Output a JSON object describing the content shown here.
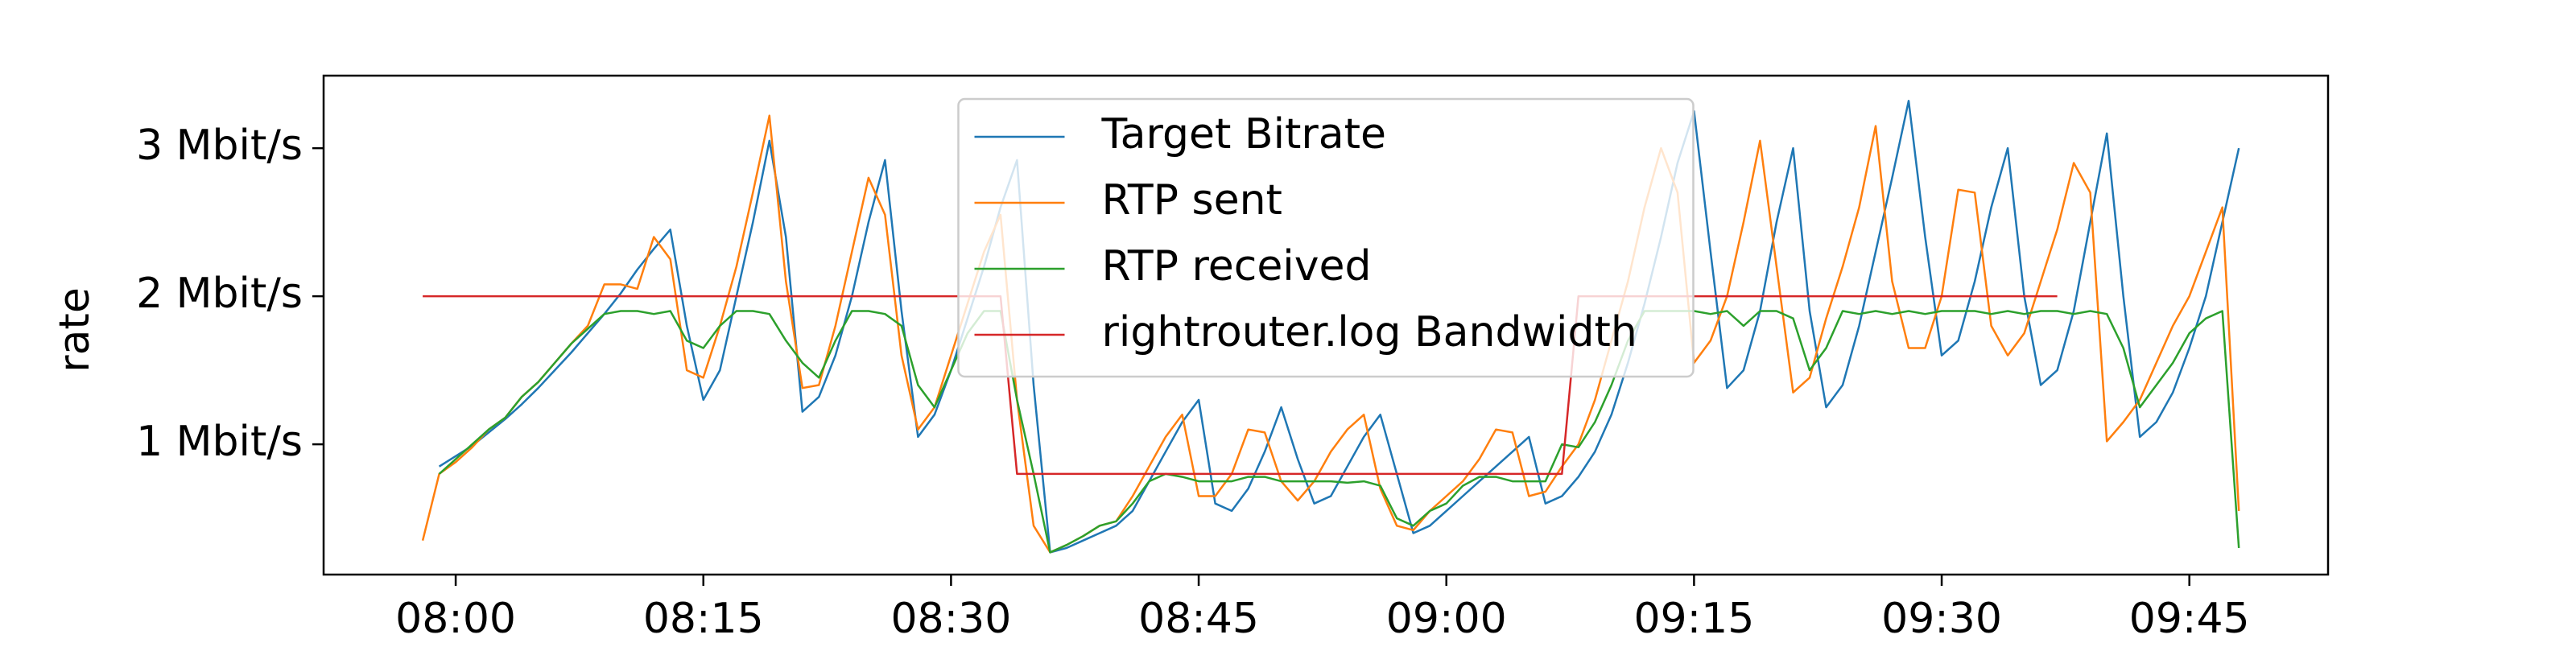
{
  "chart_data": {
    "type": "line",
    "y_label": "rate",
    "legend": "upper center",
    "xlim": [
      472,
      593.4
    ],
    "xticks": [
      {
        "value": 480,
        "label": "08:00"
      },
      {
        "value": 495,
        "label": "08:15"
      },
      {
        "value": 510,
        "label": "08:30"
      },
      {
        "value": 525,
        "label": "08:45"
      },
      {
        "value": 540,
        "label": "09:00"
      },
      {
        "value": 555,
        "label": "09:15"
      },
      {
        "value": 570,
        "label": "09:30"
      },
      {
        "value": 585,
        "label": "09:45"
      }
    ],
    "ylim": [
      0.12,
      3.49
    ],
    "yticks": [
      {
        "value": 1,
        "label": "1 Mbit/s"
      },
      {
        "value": 2,
        "label": "2 Mbit/s"
      },
      {
        "value": 3,
        "label": "3 Mbit/s"
      }
    ],
    "x": [
      478,
      479,
      480,
      481,
      482,
      483,
      484,
      485,
      486,
      487,
      488,
      489,
      490,
      491,
      492,
      493,
      494,
      495,
      496,
      497,
      498,
      499,
      500,
      501,
      502,
      503,
      504,
      505,
      506,
      507,
      508,
      509,
      510,
      511,
      512,
      513,
      514,
      515,
      516,
      517,
      518,
      519,
      520,
      521,
      522,
      523,
      524,
      525,
      526,
      527,
      528,
      529,
      530,
      531,
      532,
      533,
      534,
      535,
      536,
      537,
      538,
      539,
      540,
      541,
      542,
      543,
      544,
      545,
      546,
      547,
      548,
      549,
      550,
      551,
      552,
      553,
      554,
      555,
      556,
      557,
      558,
      559,
      560,
      561,
      562,
      563,
      564,
      565,
      566,
      567,
      568,
      569,
      570,
      571,
      572,
      573,
      574,
      575,
      576,
      577,
      578,
      579,
      580,
      581,
      582,
      583,
      584,
      585,
      586,
      587,
      588
    ],
    "series": [
      {
        "name": "Target Bitrate",
        "color": "#1f77b4",
        "values": [
          null,
          0.85,
          0.92,
          0.99,
          1.08,
          1.17,
          1.27,
          1.38,
          1.5,
          1.62,
          1.75,
          1.88,
          2.02,
          2.18,
          2.32,
          2.45,
          1.8,
          1.3,
          1.5,
          2.0,
          2.5,
          3.05,
          2.4,
          1.22,
          1.32,
          1.6,
          2.0,
          2.5,
          2.92,
          1.9,
          1.05,
          1.2,
          1.5,
          1.85,
          2.2,
          2.6,
          2.92,
          1.4,
          0.27,
          0.3,
          0.35,
          0.4,
          0.45,
          0.55,
          0.75,
          0.95,
          1.15,
          1.3,
          0.6,
          0.55,
          0.7,
          0.95,
          1.25,
          0.9,
          0.6,
          0.65,
          0.85,
          1.05,
          1.2,
          0.8,
          0.4,
          0.45,
          0.55,
          0.65,
          0.75,
          0.85,
          0.95,
          1.05,
          0.6,
          0.65,
          0.78,
          0.95,
          1.2,
          1.55,
          1.95,
          2.4,
          2.9,
          3.25,
          2.3,
          1.38,
          1.5,
          1.9,
          2.5,
          3.0,
          1.9,
          1.25,
          1.4,
          1.8,
          2.3,
          2.8,
          3.32,
          2.4,
          1.6,
          1.7,
          2.1,
          2.6,
          3.0,
          2.0,
          1.4,
          1.5,
          1.9,
          2.5,
          3.1,
          2.0,
          1.05,
          1.15,
          1.35,
          1.65,
          2.0,
          2.5,
          3.0
        ]
      },
      {
        "name": "RTP sent",
        "color": "#ff7f0e",
        "values": [
          0.35,
          0.8,
          0.88,
          0.98,
          1.1,
          1.18,
          1.32,
          1.42,
          1.55,
          1.68,
          1.8,
          2.08,
          2.08,
          2.05,
          2.4,
          2.25,
          1.5,
          1.45,
          1.8,
          2.2,
          2.7,
          3.22,
          2.1,
          1.38,
          1.4,
          1.8,
          2.3,
          2.8,
          2.55,
          1.6,
          1.1,
          1.25,
          1.6,
          1.95,
          2.3,
          2.55,
          1.3,
          0.45,
          0.27,
          0.32,
          0.38,
          0.45,
          0.48,
          0.65,
          0.85,
          1.05,
          1.2,
          0.65,
          0.65,
          0.8,
          1.1,
          1.08,
          0.75,
          0.62,
          0.75,
          0.95,
          1.1,
          1.2,
          0.7,
          0.45,
          0.42,
          0.55,
          0.65,
          0.75,
          0.9,
          1.1,
          1.08,
          0.65,
          0.68,
          0.85,
          1.0,
          1.3,
          1.7,
          2.1,
          2.6,
          3.0,
          2.7,
          1.55,
          1.7,
          2.0,
          2.5,
          3.05,
          2.2,
          1.35,
          1.45,
          1.85,
          2.2,
          2.6,
          3.15,
          2.1,
          1.65,
          1.65,
          2.0,
          2.72,
          2.7,
          1.8,
          1.6,
          1.75,
          2.1,
          2.45,
          2.9,
          2.7,
          1.02,
          1.15,
          1.3,
          1.55,
          1.8,
          2.0,
          2.3,
          2.6,
          0.55
        ]
      },
      {
        "name": "RTP received",
        "color": "#2ca02c",
        "values": [
          null,
          0.8,
          0.9,
          1.0,
          1.1,
          1.18,
          1.32,
          1.42,
          1.55,
          1.68,
          1.78,
          1.88,
          1.9,
          1.9,
          1.88,
          1.9,
          1.7,
          1.65,
          1.8,
          1.9,
          1.9,
          1.88,
          1.7,
          1.55,
          1.45,
          1.7,
          1.9,
          1.9,
          1.88,
          1.8,
          1.4,
          1.25,
          1.5,
          1.75,
          1.9,
          1.9,
          1.3,
          0.8,
          0.27,
          0.32,
          0.38,
          0.45,
          0.48,
          0.6,
          0.75,
          0.8,
          0.78,
          0.75,
          0.75,
          0.75,
          0.78,
          0.78,
          0.75,
          0.75,
          0.75,
          0.75,
          0.74,
          0.75,
          0.72,
          0.5,
          0.45,
          0.55,
          0.6,
          0.72,
          0.78,
          0.78,
          0.75,
          0.75,
          0.75,
          1.0,
          0.98,
          1.15,
          1.4,
          1.7,
          1.9,
          1.9,
          1.9,
          1.9,
          1.88,
          1.9,
          1.8,
          1.9,
          1.9,
          1.85,
          1.5,
          1.65,
          1.9,
          1.88,
          1.9,
          1.88,
          1.9,
          1.88,
          1.9,
          1.9,
          1.9,
          1.88,
          1.9,
          1.88,
          1.9,
          1.9,
          1.88,
          1.9,
          1.88,
          1.65,
          1.25,
          1.4,
          1.55,
          1.75,
          1.85,
          1.9,
          0.3
        ]
      },
      {
        "name": "rightrouter.log Bandwidth",
        "color": "#d62728",
        "values": [
          2,
          2,
          2,
          2,
          2,
          2,
          2,
          2,
          2,
          2,
          2,
          2,
          2,
          2,
          2,
          2,
          2,
          2,
          2,
          2,
          2,
          2,
          2,
          2,
          2,
          2,
          2,
          2,
          2,
          2,
          2,
          2,
          2,
          2,
          2,
          2,
          0.8,
          0.8,
          0.8,
          0.8,
          0.8,
          0.8,
          0.8,
          0.8,
          0.8,
          0.8,
          0.8,
          0.8,
          0.8,
          0.8,
          0.8,
          0.8,
          0.8,
          0.8,
          0.8,
          0.8,
          0.8,
          0.8,
          0.8,
          0.8,
          0.8,
          0.8,
          0.8,
          0.8,
          0.8,
          0.8,
          0.8,
          0.8,
          0.8,
          0.8,
          2,
          2,
          2,
          2,
          2,
          2,
          2,
          2,
          2,
          2,
          2,
          2,
          2,
          2,
          2,
          2,
          2,
          2,
          2,
          2,
          2,
          2,
          2,
          2,
          2,
          2,
          2,
          2,
          2,
          2,
          null,
          null,
          null,
          null,
          null,
          null,
          null,
          null,
          null,
          null,
          null
        ]
      }
    ]
  }
}
